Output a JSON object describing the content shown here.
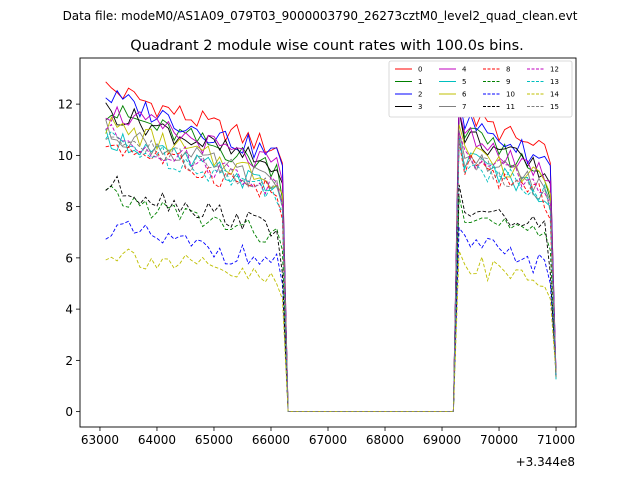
{
  "chart_data": {
    "type": "line",
    "suptitle": "Data file: modeM0/AS1A09_079T03_9000003790_26273cztM0_level2_quad_clean.evt",
    "title": "Quadrant 2 module wise count rates with 100.0s bins.",
    "xlabel": "",
    "ylabel": "",
    "x_offset_label": "+3.344e8",
    "xlim": [
      62650,
      71350
    ],
    "ylim": [
      -0.6,
      13.8
    ],
    "xticks": [
      63000,
      64000,
      65000,
      66000,
      67000,
      68000,
      69000,
      70000,
      71000
    ],
    "yticks": [
      0,
      2,
      4,
      6,
      8,
      10,
      12
    ],
    "grid": false,
    "legend_position": "top-right",
    "segments": [
      {
        "start": 63100,
        "end": 66200,
        "step": 100
      },
      {
        "start": 69200,
        "end": 71000,
        "step": 100
      }
    ],
    "series": [
      {
        "name": "0",
        "color": "#ff0000",
        "style": "solid",
        "level": 11.3,
        "drop": 9.7
      },
      {
        "name": "1",
        "color": "#008000",
        "style": "solid",
        "level": 10.5,
        "drop": 8.3
      },
      {
        "name": "2",
        "color": "#0000ff",
        "style": "solid",
        "level": 11.0,
        "drop": 9.6
      },
      {
        "name": "3",
        "color": "#000000",
        "style": "solid",
        "level": 10.5,
        "drop": 8.9
      },
      {
        "name": "4",
        "color": "#bf00bf",
        "style": "solid",
        "level": 10.5,
        "drop": 9.0
      },
      {
        "name": "5",
        "color": "#00bfbf",
        "style": "solid",
        "level": 9.6,
        "drop": 8.0
      },
      {
        "name": "6",
        "color": "#bfbf00",
        "style": "solid",
        "level": 10.0,
        "drop": 8.5
      },
      {
        "name": "7",
        "color": "#808080",
        "style": "solid",
        "level": 9.8,
        "drop": 8.2
      },
      {
        "name": "8",
        "color": "#ff0000",
        "style": "dashed",
        "level": 9.4,
        "drop": 7.5
      },
      {
        "name": "9",
        "color": "#008000",
        "style": "dashed",
        "level": 7.5,
        "drop": 6.3
      },
      {
        "name": "10",
        "color": "#0000ff",
        "style": "dashed",
        "level": 6.4,
        "drop": 5.0
      },
      {
        "name": "11",
        "color": "#000000",
        "style": "dashed",
        "level": 7.9,
        "drop": 5.4
      },
      {
        "name": "12",
        "color": "#bf00bf",
        "style": "dashed",
        "level": 9.7,
        "drop": 8.1
      },
      {
        "name": "13",
        "color": "#00bfbf",
        "style": "dashed",
        "level": 9.5,
        "drop": 7.8
      },
      {
        "name": "14",
        "color": "#bfbf00",
        "style": "dashed",
        "level": 5.6,
        "drop": 4.4
      },
      {
        "name": "15",
        "color": "#808080",
        "style": "dashed",
        "level": 9.6,
        "drop": 7.9
      }
    ]
  }
}
